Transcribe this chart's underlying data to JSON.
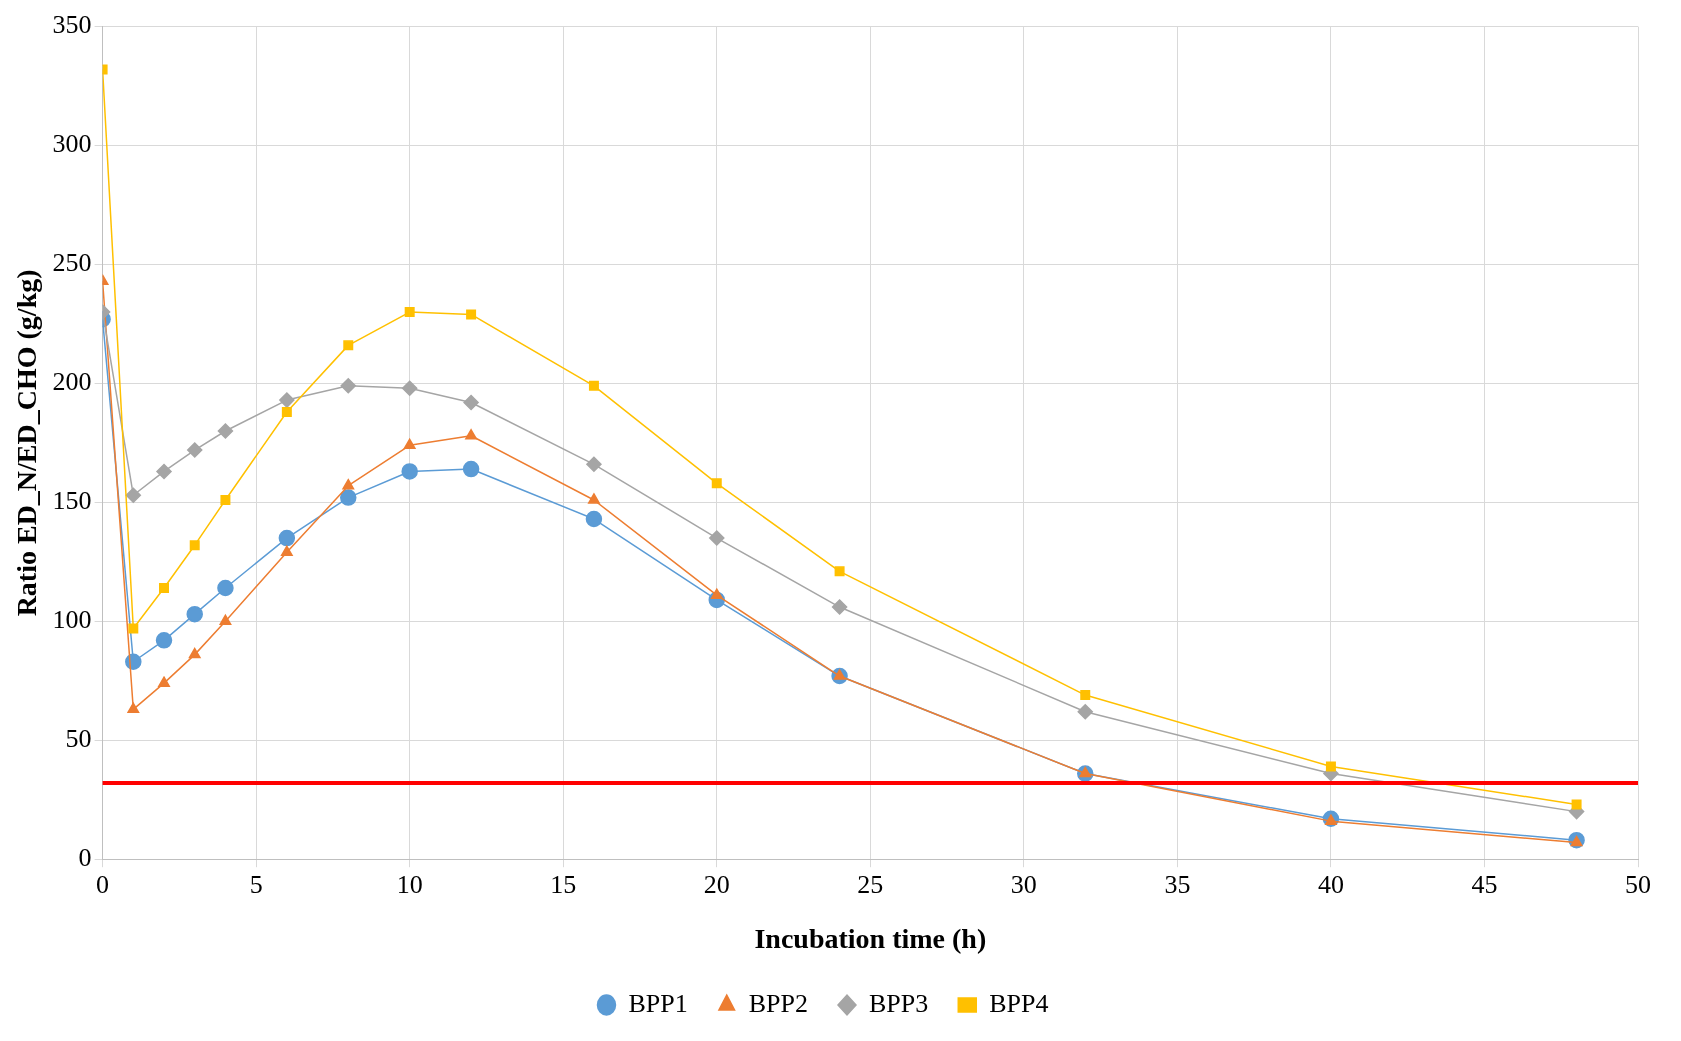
{
  "chart_data": {
    "type": "line",
    "xlabel": "Incubation time (h)",
    "ylabel": "Ratio ED_N/ED_CHO (g/kg)",
    "x": [
      0,
      1,
      2,
      3,
      4,
      6,
      8,
      10,
      12,
      16,
      20,
      24,
      32,
      40,
      48
    ],
    "xlim": [
      0,
      50
    ],
    "xticks": [
      0,
      5,
      10,
      15,
      20,
      25,
      30,
      35,
      40,
      45,
      50
    ],
    "ylim": [
      0,
      350
    ],
    "yticks": [
      0,
      50,
      100,
      150,
      200,
      250,
      300,
      350
    ],
    "grid": true,
    "legend": "bottom",
    "line_style": "solid",
    "series": [
      {
        "name": "BPP1",
        "color": "#5b9bd5",
        "marker": "circle",
        "values": [
          227,
          83,
          92,
          103,
          114,
          135,
          152,
          163,
          164,
          143,
          109,
          77,
          36,
          17,
          8
        ]
      },
      {
        "name": "BPP2",
        "color": "#ed7d31",
        "marker": "triangle",
        "values": [
          243,
          63,
          74,
          86,
          100,
          129,
          157,
          174,
          178,
          151,
          111,
          77,
          36,
          16,
          7
        ]
      },
      {
        "name": "BPP3",
        "color": "#a5a5a5",
        "marker": "diamond",
        "values": [
          230,
          153,
          163,
          172,
          180,
          193,
          199,
          198,
          192,
          166,
          135,
          106,
          62,
          36,
          20
        ]
      },
      {
        "name": "BPP4",
        "color": "#ffc000",
        "marker": "square",
        "values": [
          332,
          97,
          114,
          132,
          151,
          188,
          216,
          230,
          229,
          199,
          158,
          121,
          69,
          39,
          23
        ]
      }
    ],
    "ref_lines": [
      {
        "axis": "y",
        "value": 32,
        "color": "#ff0000",
        "line_style": "solid"
      }
    ]
  }
}
